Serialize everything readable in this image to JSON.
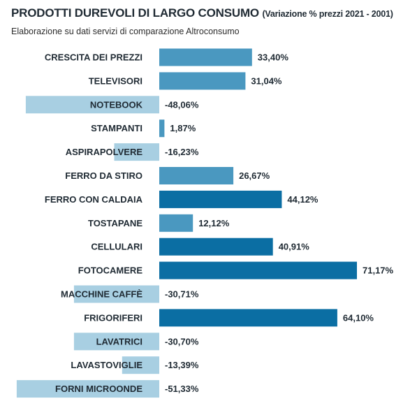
{
  "header": {
    "title": "PRODOTTI DUREVOLI DI LARGO CONSUMO",
    "title_note": "(Variazione % prezzi 2021 - 2001)",
    "subtitle": "Elaborazione su dati servizi di comparazione Altroconsumo"
  },
  "colors": {
    "negative": "#a8cfe2",
    "low_positive": "#4a98c0",
    "high_positive": "#0b6ea3"
  },
  "chart_data": {
    "type": "bar",
    "orientation": "horizontal",
    "title": "PRODOTTI DUREVOLI DI LARGO CONSUMO",
    "subtitle": "Elaborazione su dati servizi di comparazione Altroconsumo",
    "categories": [
      "CRESCITA DEI PREZZI",
      "TELEVISORI",
      "NOTEBOOK",
      "STAMPANTI",
      "ASPIRAPOLVERE",
      "FERRO DA STIRO",
      "FERRO CON CALDAIA",
      "TOSTAPANE",
      "CELLULARI",
      "FOTOCAMERE",
      "MACCHINE CAFFÈ",
      "FRIGORIFERI",
      "LAVATRICI",
      "LAVASTOVIGLIE",
      "FORNI MICROONDE"
    ],
    "values": [
      33.4,
      31.04,
      -48.06,
      1.87,
      -16.23,
      26.67,
      44.12,
      12.12,
      40.91,
      71.17,
      -30.71,
      64.1,
      -30.7,
      -13.39,
      -51.33
    ],
    "labels": [
      "33,40%",
      "31,04%",
      "-48,06%",
      "1,87%",
      "-16,23%",
      "26,67%",
      "44,12%",
      "12,12%",
      "40,91%",
      "71,17%",
      "-30,71%",
      "64,10%",
      "-30,70%",
      "-13,39%",
      "-51,33%"
    ],
    "unit": "%",
    "grid": false,
    "legend": "none"
  }
}
